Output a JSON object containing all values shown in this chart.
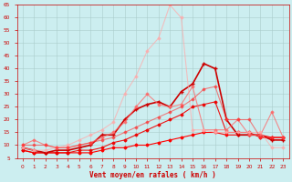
{
  "bg_color": "#cceef0",
  "grid_color": "#aacccc",
  "text_color": "#cc0000",
  "xlabel": "Vent moyen/en rafales ( km/h )",
  "xlim": [
    -0.5,
    23.5
  ],
  "ylim": [
    5,
    65
  ],
  "xticks": [
    0,
    1,
    2,
    3,
    4,
    5,
    6,
    7,
    8,
    9,
    10,
    11,
    12,
    13,
    14,
    15,
    16,
    17,
    18,
    19,
    20,
    21,
    22,
    23
  ],
  "yticks": [
    5,
    10,
    15,
    20,
    25,
    30,
    35,
    40,
    45,
    50,
    55,
    60,
    65
  ],
  "series": [
    {
      "x": [
        0,
        1,
        2,
        3,
        4,
        5,
        6,
        7,
        8,
        9,
        10,
        11,
        12,
        13,
        14,
        15,
        16,
        17,
        18,
        19,
        20,
        21,
        22,
        23
      ],
      "y": [
        8,
        7,
        7,
        7,
        7,
        7,
        7,
        8,
        9,
        9,
        10,
        10,
        11,
        12,
        13,
        14,
        15,
        15,
        14,
        14,
        14,
        14,
        13,
        13
      ],
      "color": "#ff0000",
      "alpha": 1.0,
      "lw": 0.8,
      "marker": "D",
      "ms": 1.5
    },
    {
      "x": [
        0,
        1,
        2,
        3,
        4,
        5,
        6,
        7,
        8,
        9,
        10,
        11,
        12,
        13,
        14,
        15,
        16,
        17,
        18,
        19,
        20,
        21,
        22,
        23
      ],
      "y": [
        8,
        7,
        7,
        7,
        7,
        8,
        8,
        9,
        11,
        12,
        14,
        16,
        18,
        20,
        22,
        25,
        26,
        27,
        15,
        15,
        15,
        13,
        13,
        13
      ],
      "color": "#ee0000",
      "alpha": 0.9,
      "lw": 0.8,
      "marker": "D",
      "ms": 1.5
    },
    {
      "x": [
        0,
        1,
        2,
        3,
        4,
        5,
        6,
        7,
        8,
        9,
        10,
        11,
        12,
        13,
        14,
        15,
        16,
        17,
        18,
        19,
        20,
        21,
        22,
        23
      ],
      "y": [
        9,
        8,
        7,
        8,
        8,
        9,
        10,
        14,
        14,
        20,
        24,
        26,
        27,
        25,
        31,
        34,
        42,
        40,
        20,
        14,
        14,
        14,
        12,
        12
      ],
      "color": "#cc0000",
      "alpha": 1.0,
      "lw": 1.2,
      "marker": "+",
      "ms": 3
    },
    {
      "x": [
        0,
        1,
        2,
        3,
        4,
        5,
        6,
        7,
        8,
        9,
        10,
        11,
        12,
        13,
        14,
        15,
        16,
        17,
        18,
        19,
        20,
        21,
        22,
        23
      ],
      "y": [
        10,
        12,
        10,
        9,
        9,
        10,
        11,
        13,
        15,
        19,
        25,
        30,
        26,
        25,
        26,
        33,
        16,
        16,
        16,
        20,
        14,
        14,
        23,
        13
      ],
      "color": "#ff6666",
      "alpha": 0.75,
      "lw": 0.8,
      "marker": "D",
      "ms": 1.5
    },
    {
      "x": [
        0,
        1,
        2,
        3,
        4,
        5,
        6,
        7,
        8,
        9,
        10,
        11,
        12,
        13,
        14,
        15,
        16,
        17,
        18,
        19,
        20,
        21,
        22,
        23
      ],
      "y": [
        9,
        8,
        8,
        9,
        10,
        12,
        14,
        16,
        19,
        30,
        37,
        47,
        52,
        65,
        60,
        16,
        16,
        15,
        15,
        15,
        15,
        15,
        9,
        9
      ],
      "color": "#ffaaaa",
      "alpha": 0.7,
      "lw": 0.8,
      "marker": "D",
      "ms": 1.5
    },
    {
      "x": [
        0,
        1,
        2,
        3,
        4,
        5,
        6,
        7,
        8,
        9,
        10,
        11,
        12,
        13,
        14,
        15,
        16,
        17,
        18,
        19,
        20,
        21,
        22,
        23
      ],
      "y": [
        10,
        10,
        10,
        9,
        9,
        10,
        11,
        12,
        13,
        15,
        17,
        19,
        21,
        23,
        25,
        28,
        32,
        33,
        20,
        20,
        20,
        13,
        13,
        13
      ],
      "color": "#ff3333",
      "alpha": 0.6,
      "lw": 0.8,
      "marker": "D",
      "ms": 1.5
    }
  ]
}
